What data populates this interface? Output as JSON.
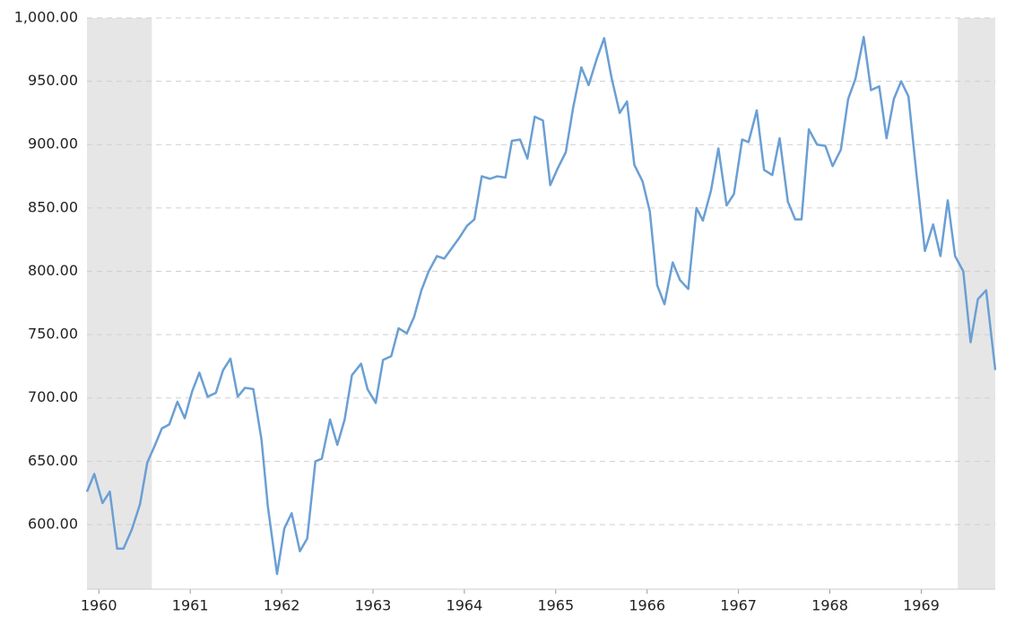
{
  "chart_data": {
    "type": "line",
    "x": [
      1959.87,
      1959.95,
      1960.04,
      1960.12,
      1960.2,
      1960.27,
      1960.36,
      1960.45,
      1960.53,
      1960.61,
      1960.69,
      1960.77,
      1960.86,
      1960.94,
      1961.02,
      1961.1,
      1961.19,
      1961.28,
      1961.36,
      1961.44,
      1961.52,
      1961.6,
      1961.69,
      1961.78,
      1961.85,
      1961.95,
      1962.03,
      1962.11,
      1962.2,
      1962.28,
      1962.37,
      1962.44,
      1962.53,
      1962.61,
      1962.69,
      1962.77,
      1962.87,
      1962.94,
      1963.03,
      1963.11,
      1963.2,
      1963.28,
      1963.37,
      1963.45,
      1963.53,
      1963.61,
      1963.7,
      1963.78,
      1963.87,
      1963.95,
      1964.03,
      1964.11,
      1964.19,
      1964.28,
      1964.36,
      1964.45,
      1964.52,
      1964.61,
      1964.69,
      1964.77,
      1964.86,
      1964.94,
      1965.02,
      1965.11,
      1965.19,
      1965.28,
      1965.36,
      1965.45,
      1965.53,
      1965.61,
      1965.7,
      1965.78,
      1965.86,
      1965.95,
      1966.03,
      1966.11,
      1966.19,
      1966.28,
      1966.36,
      1966.45,
      1966.54,
      1966.61,
      1966.7,
      1966.78,
      1966.87,
      1966.95,
      1967.04,
      1967.11,
      1967.2,
      1967.28,
      1967.37,
      1967.45,
      1967.54,
      1967.62,
      1967.69,
      1967.77,
      1967.86,
      1967.95,
      1968.03,
      1968.12,
      1968.2,
      1968.28,
      1968.37,
      1968.45,
      1968.54,
      1968.62,
      1968.7,
      1968.78,
      1968.86,
      1968.95,
      1969.04,
      1969.13,
      1969.21,
      1969.29,
      1969.37,
      1969.46,
      1969.54,
      1969.62,
      1969.71,
      1969.81
    ],
    "series": [
      {
        "color": "#6a9fd4",
        "values": [
          626,
          640,
          617,
          626,
          581,
          581,
          596,
          616,
          649,
          662,
          676,
          679,
          697,
          684,
          705,
          720,
          701,
          704,
          722,
          731,
          701,
          708,
          707,
          667,
          614,
          561,
          597,
          609,
          579,
          589,
          650,
          652,
          683,
          663,
          683,
          718,
          727,
          707,
          696,
          730,
          733,
          755,
          751,
          764,
          785,
          800,
          812,
          810,
          819,
          827,
          836,
          841,
          875,
          873,
          875,
          874,
          903,
          904,
          889,
          922,
          919,
          868,
          881,
          894,
          929,
          961,
          947,
          968,
          984,
          953,
          925,
          934,
          884,
          871,
          847,
          789,
          774,
          807,
          793,
          786,
          850,
          840,
          864,
          897,
          852,
          861,
          904,
          902,
          927,
          880,
          876,
          905,
          855,
          841,
          841,
          912,
          900,
          899,
          883,
          896,
          936,
          952,
          985,
          943,
          946,
          905,
          936,
          950,
          938,
          875,
          816,
          837,
          812,
          856,
          812,
          800,
          744,
          778,
          785,
          722
        ]
      }
    ],
    "xlim": [
      1959.87,
      1969.81
    ],
    "xticks": [
      1960,
      1961,
      1962,
      1963,
      1964,
      1965,
      1966,
      1967,
      1968,
      1969
    ],
    "ylim": [
      549,
      1000
    ],
    "yticks": [
      {
        "value": 600,
        "label": "600.00"
      },
      {
        "value": 650,
        "label": "650.00"
      },
      {
        "value": 700,
        "label": "700.00"
      },
      {
        "value": 750,
        "label": "750.00"
      },
      {
        "value": 800,
        "label": "800.00"
      },
      {
        "value": 850,
        "label": "850.00"
      },
      {
        "value": 900,
        "label": "900.00"
      },
      {
        "value": 950,
        "label": "950.00"
      },
      {
        "value": 1000,
        "label": "1,000.00"
      }
    ],
    "shaded_ranges": [
      [
        1959.87,
        1960.58
      ],
      [
        1969.4,
        1969.81
      ]
    ],
    "shade_color": "#e6e6e6",
    "grid": true
  }
}
